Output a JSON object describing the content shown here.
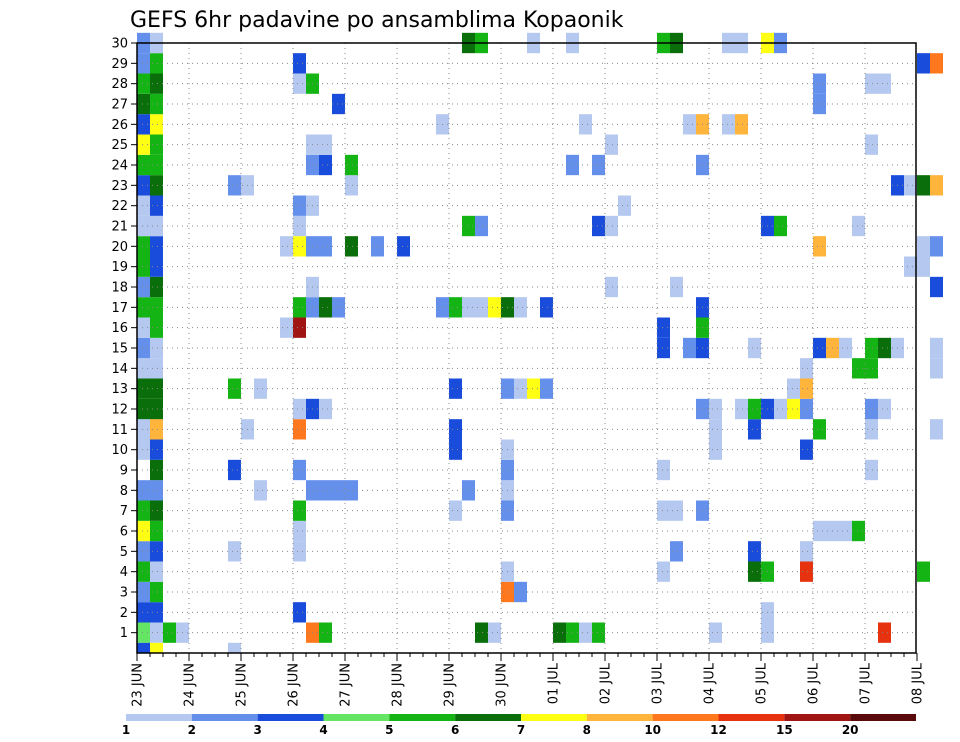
{
  "chart_data": {
    "type": "heatmap",
    "title": "GEFS 6hr padavine po ansamblima Kopaonik",
    "y_categories": [
      "1",
      "2",
      "3",
      "4",
      "5",
      "6",
      "7",
      "8",
      "9",
      "10",
      "11",
      "12",
      "13",
      "14",
      "15",
      "16",
      "17",
      "18",
      "19",
      "20",
      "21",
      "22",
      "23",
      "24",
      "25",
      "26",
      "27",
      "28",
      "29",
      "30"
    ],
    "x_date_labels": [
      "23 JUN",
      "24 JUN",
      "25 JUN",
      "26 JUN",
      "27 JUN",
      "28 JUN",
      "29 JUN",
      "30 JUN",
      "01 JUL",
      "02 JUL",
      "03 JUL",
      "04 JUL",
      "05 JUL",
      "06 JUL",
      "07 JUL",
      "08 JUL"
    ],
    "time_step_hours": 6,
    "grid": true,
    "legend": {
      "placement": "bottom",
      "thresholds": [
        "1",
        "2",
        "3",
        "4",
        "5",
        "6",
        "7",
        "8",
        "10",
        "12",
        "15",
        "20"
      ],
      "colors": [
        "#b4c8f0",
        "#6490ec",
        "#1a4cdc",
        "#64e664",
        "#14b414",
        "#0a6e0a",
        "#ffff14",
        "#ffb43c",
        "#ff781e",
        "#e6320f",
        "#a01414",
        "#5a0a0a"
      ]
    },
    "cells": [
      [
        1,
        0,
        4
      ],
      [
        1,
        1,
        1
      ],
      [
        1,
        2,
        5
      ],
      [
        1,
        3,
        1
      ],
      [
        1,
        13,
        9
      ],
      [
        1,
        14,
        5
      ],
      [
        1,
        26,
        6
      ],
      [
        1,
        27,
        1
      ],
      [
        1,
        32,
        6
      ],
      [
        1,
        33,
        5
      ],
      [
        1,
        34,
        1
      ],
      [
        1,
        35,
        5
      ],
      [
        1,
        44,
        1
      ],
      [
        1,
        48,
        1
      ],
      [
        1,
        57,
        10
      ],
      [
        2,
        0,
        3
      ],
      [
        2,
        1,
        3
      ],
      [
        2,
        12,
        3
      ],
      [
        2,
        48,
        1
      ],
      [
        3,
        0,
        2
      ],
      [
        3,
        1,
        5
      ],
      [
        3,
        28,
        9
      ],
      [
        3,
        29,
        2
      ],
      [
        4,
        0,
        5
      ],
      [
        4,
        1,
        1
      ],
      [
        4,
        28,
        1
      ],
      [
        4,
        40,
        1
      ],
      [
        4,
        47,
        6
      ],
      [
        4,
        48,
        5
      ],
      [
        4,
        51,
        10
      ],
      [
        4,
        60,
        5
      ],
      [
        5,
        0,
        2
      ],
      [
        5,
        1,
        3
      ],
      [
        5,
        7,
        1
      ],
      [
        5,
        12,
        1
      ],
      [
        5,
        41,
        2
      ],
      [
        5,
        47,
        3
      ],
      [
        5,
        51,
        1
      ],
      [
        6,
        0,
        7
      ],
      [
        6,
        1,
        5
      ],
      [
        6,
        12,
        1
      ],
      [
        6,
        52,
        1
      ],
      [
        6,
        53,
        1
      ],
      [
        6,
        54,
        1
      ],
      [
        6,
        55,
        5
      ],
      [
        7,
        0,
        5
      ],
      [
        7,
        1,
        6
      ],
      [
        7,
        12,
        5
      ],
      [
        7,
        24,
        1
      ],
      [
        7,
        28,
        2
      ],
      [
        7,
        40,
        1
      ],
      [
        7,
        41,
        1
      ],
      [
        7,
        43,
        2
      ],
      [
        8,
        0,
        2
      ],
      [
        8,
        1,
        2
      ],
      [
        8,
        9,
        1
      ],
      [
        8,
        13,
        2
      ],
      [
        8,
        14,
        2
      ],
      [
        8,
        15,
        2
      ],
      [
        8,
        16,
        2
      ],
      [
        8,
        25,
        2
      ],
      [
        8,
        28,
        1
      ],
      [
        9,
        1,
        6
      ],
      [
        9,
        7,
        3
      ],
      [
        9,
        12,
        2
      ],
      [
        9,
        28,
        2
      ],
      [
        9,
        40,
        1
      ],
      [
        9,
        56,
        1
      ],
      [
        10,
        0,
        1
      ],
      [
        10,
        1,
        3
      ],
      [
        10,
        24,
        3
      ],
      [
        10,
        28,
        1
      ],
      [
        10,
        44,
        1
      ],
      [
        10,
        51,
        3
      ],
      [
        11,
        0,
        1
      ],
      [
        11,
        1,
        8
      ],
      [
        11,
        8,
        1
      ],
      [
        11,
        12,
        9
      ],
      [
        11,
        24,
        3
      ],
      [
        11,
        44,
        1
      ],
      [
        11,
        47,
        3
      ],
      [
        11,
        52,
        5
      ],
      [
        11,
        56,
        1
      ],
      [
        11,
        61,
        1
      ],
      [
        12,
        0,
        6
      ],
      [
        12,
        1,
        6
      ],
      [
        12,
        12,
        1
      ],
      [
        12,
        13,
        3
      ],
      [
        12,
        14,
        1
      ],
      [
        12,
        43,
        2
      ],
      [
        12,
        44,
        1
      ],
      [
        12,
        46,
        1
      ],
      [
        12,
        47,
        5
      ],
      [
        12,
        48,
        3
      ],
      [
        12,
        49,
        1
      ],
      [
        12,
        50,
        7
      ],
      [
        12,
        51,
        2
      ],
      [
        12,
        56,
        2
      ],
      [
        12,
        57,
        1
      ],
      [
        13,
        0,
        6
      ],
      [
        13,
        1,
        6
      ],
      [
        13,
        7,
        5
      ],
      [
        13,
        9,
        1
      ],
      [
        13,
        24,
        3
      ],
      [
        13,
        28,
        2
      ],
      [
        13,
        29,
        1
      ],
      [
        13,
        30,
        7
      ],
      [
        13,
        31,
        2
      ],
      [
        13,
        50,
        1
      ],
      [
        13,
        51,
        8
      ],
      [
        14,
        0,
        1
      ],
      [
        14,
        1,
        1
      ],
      [
        14,
        51,
        1
      ],
      [
        14,
        55,
        5
      ],
      [
        14,
        56,
        5
      ],
      [
        14,
        61,
        1
      ],
      [
        15,
        0,
        2
      ],
      [
        15,
        1,
        1
      ],
      [
        15,
        40,
        3
      ],
      [
        15,
        42,
        2
      ],
      [
        15,
        43,
        3
      ],
      [
        15,
        47,
        1
      ],
      [
        15,
        52,
        3
      ],
      [
        15,
        53,
        8
      ],
      [
        15,
        54,
        1
      ],
      [
        15,
        56,
        5
      ],
      [
        15,
        57,
        6
      ],
      [
        15,
        58,
        1
      ],
      [
        15,
        61,
        1
      ],
      [
        16,
        0,
        1
      ],
      [
        16,
        1,
        5
      ],
      [
        16,
        11,
        1
      ],
      [
        16,
        12,
        11
      ],
      [
        16,
        40,
        3
      ],
      [
        16,
        43,
        5
      ],
      [
        17,
        0,
        5
      ],
      [
        17,
        1,
        5
      ],
      [
        17,
        12,
        5
      ],
      [
        17,
        13,
        2
      ],
      [
        17,
        14,
        6
      ],
      [
        17,
        15,
        2
      ],
      [
        17,
        23,
        2
      ],
      [
        17,
        24,
        5
      ],
      [
        17,
        25,
        1
      ],
      [
        17,
        26,
        1
      ],
      [
        17,
        27,
        7
      ],
      [
        17,
        28,
        6
      ],
      [
        17,
        29,
        1
      ],
      [
        17,
        31,
        3
      ],
      [
        17,
        43,
        3
      ],
      [
        18,
        0,
        2
      ],
      [
        18,
        1,
        6
      ],
      [
        18,
        13,
        1
      ],
      [
        18,
        36,
        1
      ],
      [
        18,
        41,
        1
      ],
      [
        18,
        61,
        3
      ],
      [
        19,
        0,
        5
      ],
      [
        19,
        1,
        3
      ],
      [
        19,
        59,
        1
      ],
      [
        19,
        60,
        1
      ],
      [
        20,
        0,
        5
      ],
      [
        20,
        1,
        3
      ],
      [
        20,
        11,
        1
      ],
      [
        20,
        12,
        7
      ],
      [
        20,
        13,
        2
      ],
      [
        20,
        14,
        2
      ],
      [
        20,
        16,
        6
      ],
      [
        20,
        18,
        2
      ],
      [
        20,
        20,
        3
      ],
      [
        20,
        52,
        8
      ],
      [
        20,
        60,
        1
      ],
      [
        20,
        61,
        2
      ],
      [
        21,
        0,
        1
      ],
      [
        21,
        1,
        1
      ],
      [
        21,
        12,
        1
      ],
      [
        21,
        25,
        5
      ],
      [
        21,
        26,
        2
      ],
      [
        21,
        35,
        3
      ],
      [
        21,
        36,
        1
      ],
      [
        21,
        48,
        3
      ],
      [
        21,
        49,
        5
      ],
      [
        21,
        55,
        1
      ],
      [
        22,
        0,
        1
      ],
      [
        22,
        1,
        3
      ],
      [
        22,
        12,
        2
      ],
      [
        22,
        13,
        1
      ],
      [
        22,
        37,
        1
      ],
      [
        23,
        0,
        3
      ],
      [
        23,
        1,
        6
      ],
      [
        23,
        7,
        2
      ],
      [
        23,
        8,
        1
      ],
      [
        23,
        16,
        1
      ],
      [
        23,
        58,
        3
      ],
      [
        23,
        59,
        1
      ],
      [
        23,
        60,
        6
      ],
      [
        23,
        61,
        8
      ],
      [
        24,
        0,
        5
      ],
      [
        24,
        1,
        5
      ],
      [
        24,
        13,
        2
      ],
      [
        24,
        14,
        3
      ],
      [
        24,
        16,
        5
      ],
      [
        24,
        33,
        2
      ],
      [
        24,
        35,
        2
      ],
      [
        24,
        43,
        2
      ],
      [
        25,
        0,
        7
      ],
      [
        25,
        1,
        5
      ],
      [
        25,
        13,
        1
      ],
      [
        25,
        14,
        1
      ],
      [
        25,
        36,
        1
      ],
      [
        25,
        56,
        1
      ],
      [
        26,
        0,
        3
      ],
      [
        26,
        1,
        7
      ],
      [
        26,
        23,
        1
      ],
      [
        26,
        34,
        1
      ],
      [
        26,
        42,
        1
      ],
      [
        26,
        43,
        8
      ],
      [
        26,
        45,
        1
      ],
      [
        26,
        46,
        8
      ],
      [
        27,
        0,
        6
      ],
      [
        27,
        1,
        5
      ],
      [
        27,
        15,
        3
      ],
      [
        27,
        52,
        2
      ],
      [
        28,
        0,
        5
      ],
      [
        28,
        1,
        6
      ],
      [
        28,
        12,
        1
      ],
      [
        28,
        13,
        5
      ],
      [
        28,
        52,
        2
      ],
      [
        28,
        56,
        1
      ],
      [
        28,
        57,
        1
      ],
      [
        29,
        0,
        2
      ],
      [
        29,
        1,
        5
      ],
      [
        29,
        12,
        3
      ],
      [
        29,
        60,
        3
      ],
      [
        29,
        61,
        9
      ],
      [
        30,
        0,
        2
      ],
      [
        30,
        1,
        1
      ],
      [
        30,
        25,
        6
      ],
      [
        30,
        26,
        5
      ],
      [
        30,
        30,
        1
      ],
      [
        30,
        33,
        1
      ],
      [
        30,
        40,
        5
      ],
      [
        30,
        41,
        6
      ],
      [
        30,
        45,
        1
      ],
      [
        30,
        46,
        1
      ],
      [
        30,
        48,
        7
      ],
      [
        30,
        49,
        2
      ],
      [
        0,
        0,
        3
      ],
      [
        0,
        1,
        7
      ],
      [
        0,
        7,
        1
      ]
    ]
  }
}
